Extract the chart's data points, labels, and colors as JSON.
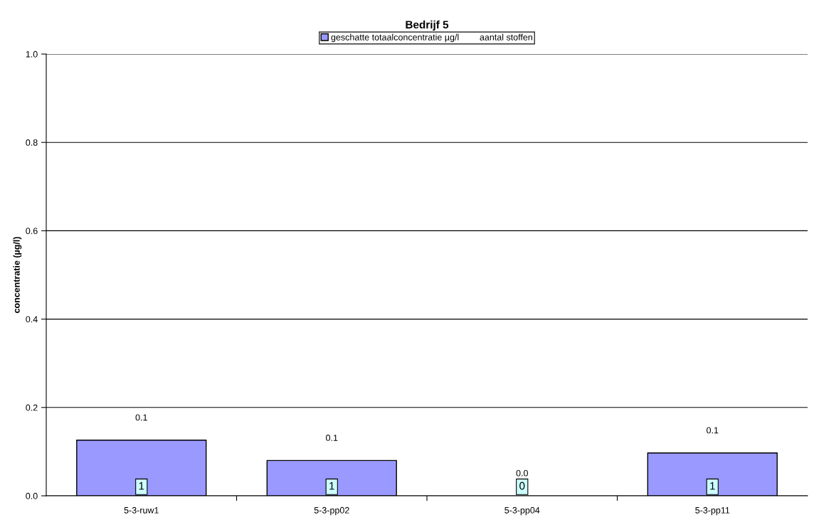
{
  "chart_data": {
    "type": "bar",
    "title": "Bedrijf 5",
    "ylabel": "concentratie (µg/l)",
    "categories": [
      "5-3-ruw1",
      "5-3-pp02",
      "5-3-pp04",
      "5-3-pp11"
    ],
    "series": [
      {
        "name": "geschatte totaalconcentratie µg/l",
        "color": "#9999ff",
        "values": [
          0.126,
          0.08,
          0,
          0.097
        ],
        "value_labels": [
          "0.1",
          "0.1",
          "0.0",
          "0.1"
        ]
      },
      {
        "name": "aantal stoffen",
        "values": [
          null,
          null,
          null,
          null
        ]
      }
    ],
    "annotations": [
      {
        "text": "1",
        "x": "5-3-ruw1",
        "y": 0
      },
      {
        "text": "1",
        "x": "5-3-pp02",
        "y": 0
      },
      {
        "text": "0",
        "x": "5-3-pp04",
        "y": 0
      },
      {
        "text": "1",
        "x": "5-3-pp11",
        "y": 0
      }
    ],
    "ylim": [
      0,
      1
    ],
    "yticks": [
      {
        "value": 0,
        "label": "0.0"
      },
      {
        "value": 0.2,
        "label": "0.2"
      },
      {
        "value": 0.4,
        "label": "0.4"
      },
      {
        "value": 0.6,
        "label": "0.6"
      },
      {
        "value": 0.8,
        "label": "0.8"
      },
      {
        "value": 1,
        "label": "1.0"
      }
    ],
    "grid": "y",
    "legend": "top"
  }
}
